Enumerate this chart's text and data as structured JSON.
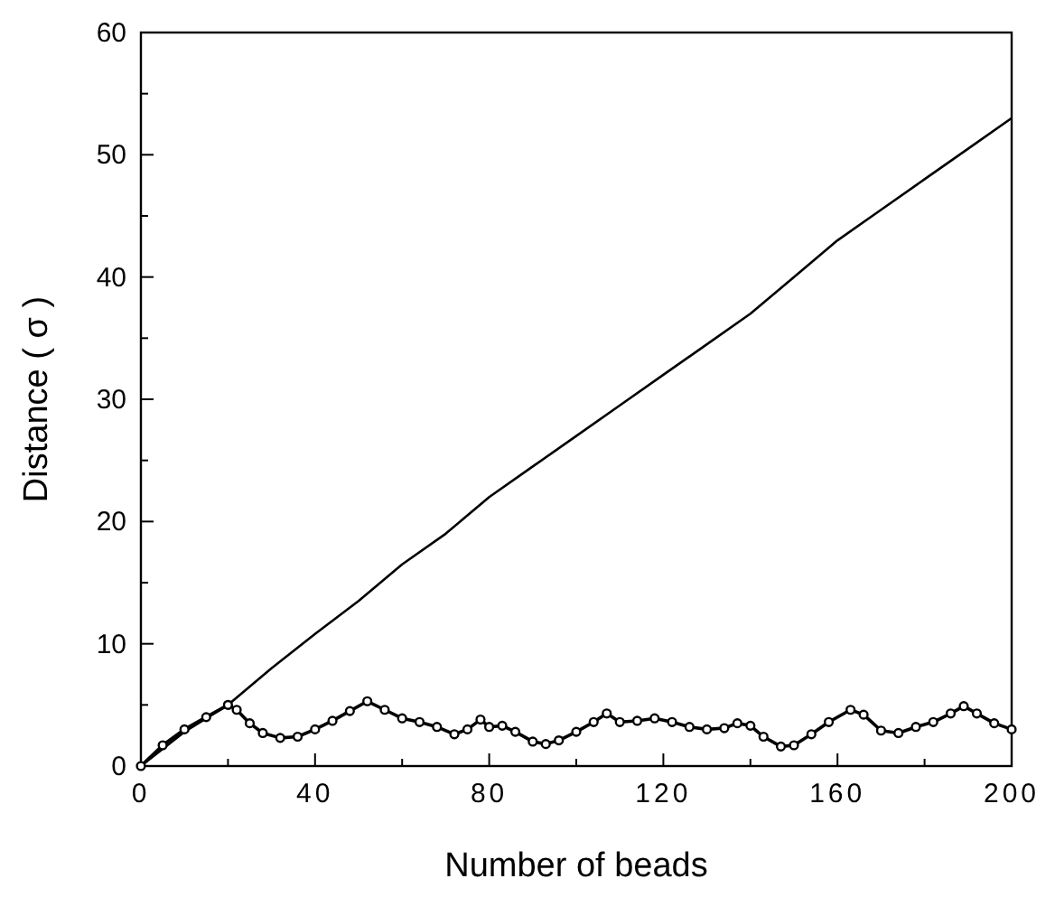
{
  "chart_data": {
    "type": "line",
    "xlabel": "Number of beads",
    "ylabel": "Distance ( σ )",
    "xlim": [
      0,
      200
    ],
    "ylim": [
      0,
      60
    ],
    "xticks": [
      0,
      {
        "value": 20,
        "label": null
      },
      40,
      {
        "value": 60,
        "label": null
      },
      80,
      {
        "value": 100,
        "label": null
      },
      120,
      {
        "value": 140,
        "label": null
      },
      160,
      {
        "value": 180,
        "label": null
      },
      200
    ],
    "yticks": [
      0,
      {
        "value": 5,
        "label": null
      },
      10,
      {
        "value": 15,
        "label": null
      },
      20,
      {
        "value": 25,
        "label": null
      },
      30,
      {
        "value": 35,
        "label": null
      },
      40,
      {
        "value": 45,
        "label": null
      },
      50,
      {
        "value": 55,
        "label": null
      },
      60
    ],
    "grid": false,
    "series": [
      {
        "color": "#000000",
        "marker": "none",
        "x": [
          0,
          10,
          20,
          30,
          40,
          50,
          60,
          70,
          80,
          90,
          100,
          110,
          120,
          130,
          140,
          150,
          160,
          170,
          180,
          190,
          200
        ],
        "values": [
          0,
          2.8,
          5,
          8,
          10.8,
          13.5,
          16.5,
          19,
          22,
          24.5,
          27,
          29.5,
          32,
          34.5,
          37,
          40,
          43,
          45.5,
          48,
          50.5,
          53
        ]
      },
      {
        "color": "#000000",
        "marker": "circle",
        "x": [
          0,
          5,
          10,
          15,
          20,
          22,
          25,
          28,
          32,
          36,
          40,
          44,
          48,
          52,
          56,
          60,
          64,
          68,
          72,
          75,
          78,
          80,
          83,
          86,
          90,
          93,
          96,
          100,
          104,
          107,
          110,
          114,
          118,
          122,
          126,
          130,
          134,
          137,
          140,
          143,
          147,
          150,
          154,
          158,
          163,
          166,
          170,
          174,
          178,
          182,
          186,
          189,
          192,
          196,
          200
        ],
        "values": [
          0,
          1.7,
          3,
          4,
          5,
          4.6,
          3.5,
          2.7,
          2.3,
          2.4,
          3,
          3.7,
          4.5,
          5.3,
          4.6,
          3.9,
          3.6,
          3.2,
          2.6,
          3,
          3.8,
          3.2,
          3.3,
          2.8,
          2,
          1.8,
          2.1,
          2.8,
          3.6,
          4.3,
          3.6,
          3.7,
          3.9,
          3.6,
          3.2,
          3,
          3.1,
          3.5,
          3.3,
          2.4,
          1.6,
          1.7,
          2.6,
          3.6,
          4.6,
          4.2,
          2.9,
          2.7,
          3.2,
          3.6,
          4.3,
          4.9,
          4.3,
          3.5,
          3
        ]
      }
    ]
  }
}
